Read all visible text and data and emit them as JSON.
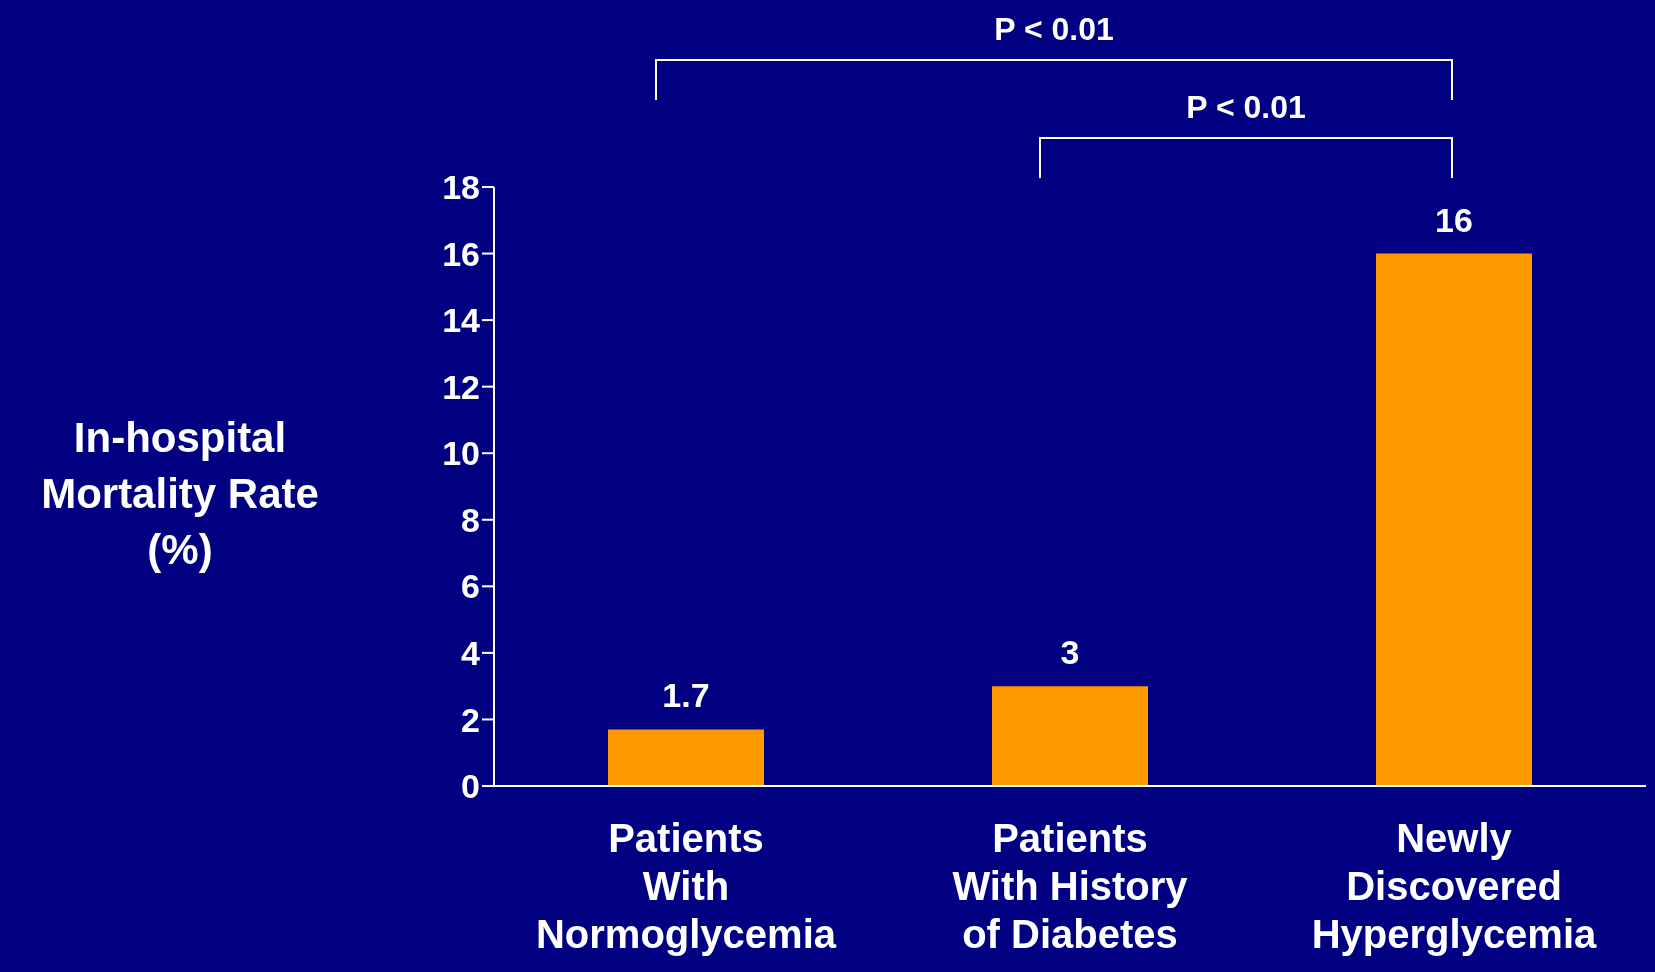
{
  "chart_data": {
    "type": "bar",
    "ylabel": "In-hospital Mortality Rate (%)",
    "categories": [
      "Patients With Normoglycemia",
      "Patients With History of Diabetes",
      "Newly Discovered Hyperglycemia"
    ],
    "values": [
      1.7,
      3,
      16
    ],
    "color": "#ff9900",
    "ylim": [
      0,
      18
    ],
    "yticks": [
      0,
      2,
      4,
      6,
      8,
      10,
      12,
      14,
      16,
      18
    ],
    "grid": false,
    "data_labels": true,
    "annotations": [
      "P < 0.01",
      "P < 0.01"
    ]
  }
}
